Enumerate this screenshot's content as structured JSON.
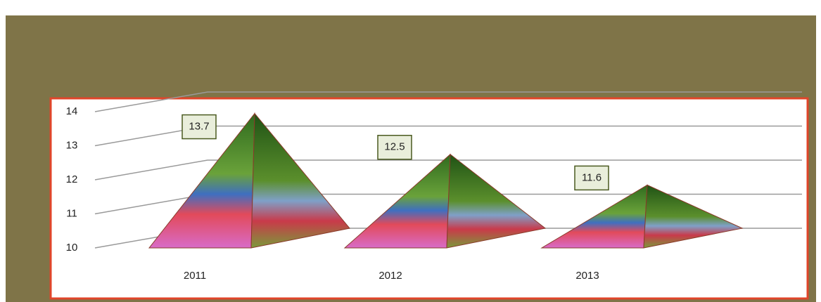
{
  "chart_data": {
    "type": "pyramid",
    "categories": [
      "2011",
      "2012",
      "2013"
    ],
    "values": [
      13.7,
      12.5,
      11.6
    ],
    "ylim": [
      10,
      14
    ],
    "yticks": [
      10,
      11,
      12,
      13,
      14
    ],
    "grid": true
  }
}
